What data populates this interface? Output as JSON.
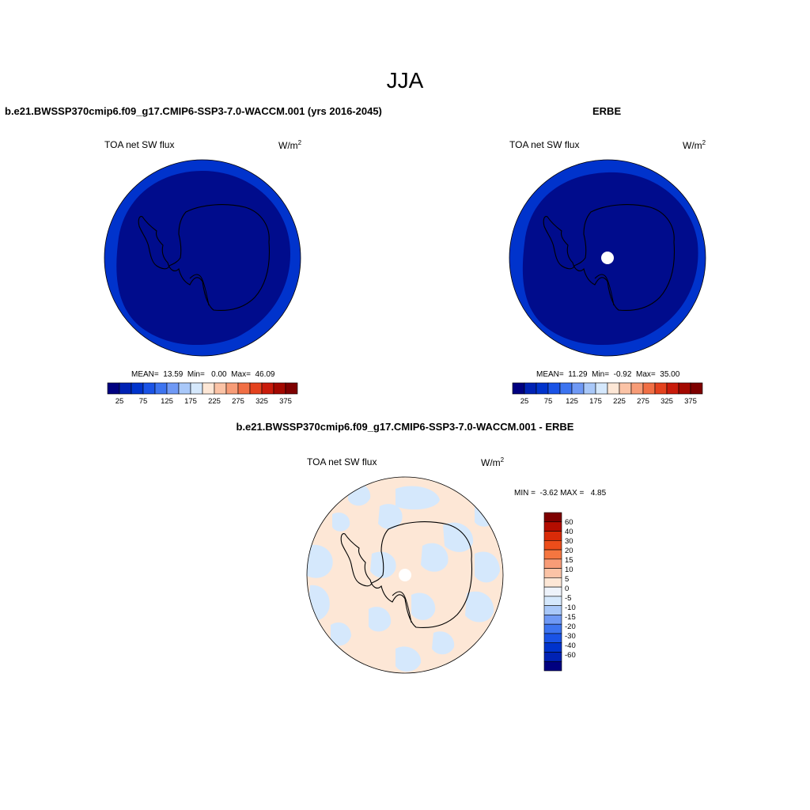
{
  "figure": {
    "main_title": "JJA",
    "units_base": "W/m",
    "units_sup": "2"
  },
  "panels": {
    "model": {
      "title": "b.e21.BWSSP370cmip6.f09_g17.CMIP6-SSP3-7.0-WACCM.001 (yrs 2016-2045)",
      "variable": "TOA net SW flux",
      "stats": "MEAN=  13.59  Min=   0.00  Max=  46.09",
      "fill_outer": "#0033cc",
      "fill_inner": "#000c8c"
    },
    "obs": {
      "title": "ERBE",
      "variable": "TOA net SW flux",
      "stats": "MEAN=  11.29  Min=  -0.92  Max=  35.00",
      "fill_outer": "#0033cc",
      "fill_inner": "#000c8c",
      "pole_missing_color": "#ffffff"
    },
    "diff": {
      "title": "b.e21.BWSSP370cmip6.f09_g17.CMIP6-SSP3-7.0-WACCM.001 - ERBE",
      "variable": "TOA net SW flux",
      "stats": "MIN =  -3.62 MAX =   4.85",
      "background_fill": "#fde7d6",
      "negative_patch_fill": "#d5e8fc",
      "pole_missing_color": "#ffffff"
    }
  },
  "colorbar_horizontal": {
    "colors": [
      "#000080",
      "#0022b4",
      "#0033cc",
      "#1a53e6",
      "#3d74f0",
      "#6f99f5",
      "#a9c8f9",
      "#d5e8fc",
      "#fde7d6",
      "#fbc3a6",
      "#f79c77",
      "#f16f45",
      "#e4421e",
      "#c91b0b",
      "#a30800",
      "#7e0000"
    ],
    "labels": [
      "25",
      "75",
      "125",
      "175",
      "225",
      "275",
      "325",
      "375"
    ]
  },
  "colorbar_vertical": {
    "colors_top_to_bottom": [
      "#7e0000",
      "#b30d00",
      "#d92b08",
      "#ec4d1a",
      "#f57640",
      "#f89c77",
      "#fbc3a6",
      "#fde7d6",
      "#eef3fb",
      "#d5e8fc",
      "#a9c8f9",
      "#6f99f5",
      "#3d74f0",
      "#1a53e6",
      "#0033cc",
      "#0022b4",
      "#000080"
    ],
    "labels": [
      "60",
      "40",
      "30",
      "20",
      "15",
      "10",
      "5",
      "0",
      "-5",
      "-10",
      "-15",
      "-20",
      "-30",
      "-40",
      "-60"
    ]
  },
  "map": {
    "projection": "south-polar-stereographic",
    "coastline_color": "#000000"
  }
}
